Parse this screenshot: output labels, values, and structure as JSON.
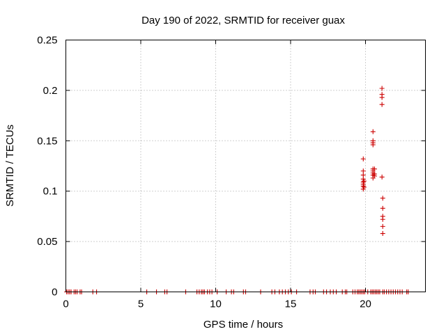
{
  "chart_data": {
    "type": "scatter",
    "title": "Day 190 of 2022, SRMTID for receiver guax",
    "xlabel": "GPS time / hours",
    "ylabel": "SRMTID / TECUs",
    "xlim": [
      0,
      24
    ],
    "ylim": [
      0,
      0.25
    ],
    "xticks": [
      "0",
      "5",
      "10",
      "15",
      "20"
    ],
    "yticks": [
      "0",
      "0.05",
      "0.1",
      "0.15",
      "0.2",
      "0.25"
    ],
    "xtick_values": [
      0,
      5,
      10,
      15,
      20
    ],
    "ytick_values": [
      0,
      0.05,
      0.1,
      0.15,
      0.2,
      0.25
    ],
    "grid": true,
    "marker": "plus",
    "color": "#cc0000",
    "points": [
      [
        0.05,
        0
      ],
      [
        0.15,
        0
      ],
      [
        0.25,
        0
      ],
      [
        0.35,
        0
      ],
      [
        0.55,
        0
      ],
      [
        0.65,
        0
      ],
      [
        0.75,
        0
      ],
      [
        0.95,
        0
      ],
      [
        1.05,
        0
      ],
      [
        1.8,
        0
      ],
      [
        2.05,
        0
      ],
      [
        5.4,
        0
      ],
      [
        6.05,
        0
      ],
      [
        6.6,
        0
      ],
      [
        6.75,
        0
      ],
      [
        8.0,
        0
      ],
      [
        8.75,
        0
      ],
      [
        8.9,
        0
      ],
      [
        9.05,
        0
      ],
      [
        9.15,
        0
      ],
      [
        9.25,
        0
      ],
      [
        9.45,
        0
      ],
      [
        9.6,
        0
      ],
      [
        9.75,
        0
      ],
      [
        10.1,
        0
      ],
      [
        10.7,
        0
      ],
      [
        11.05,
        0
      ],
      [
        11.2,
        0
      ],
      [
        11.85,
        0
      ],
      [
        12.0,
        0
      ],
      [
        13.0,
        0
      ],
      [
        13.75,
        0
      ],
      [
        13.95,
        0
      ],
      [
        14.25,
        0
      ],
      [
        14.45,
        0
      ],
      [
        14.65,
        0
      ],
      [
        14.85,
        0
      ],
      [
        15.05,
        0
      ],
      [
        15.4,
        0
      ],
      [
        16.3,
        0
      ],
      [
        16.5,
        0
      ],
      [
        16.65,
        0
      ],
      [
        17.2,
        0
      ],
      [
        17.4,
        0
      ],
      [
        17.65,
        0
      ],
      [
        17.85,
        0
      ],
      [
        18.05,
        0
      ],
      [
        18.45,
        0
      ],
      [
        18.65,
        0
      ],
      [
        18.75,
        0
      ],
      [
        19.15,
        0
      ],
      [
        19.3,
        0
      ],
      [
        19.45,
        0
      ],
      [
        19.55,
        0
      ],
      [
        19.65,
        0
      ],
      [
        19.75,
        0
      ],
      [
        19.85,
        0
      ],
      [
        19.95,
        0
      ],
      [
        20.15,
        0
      ],
      [
        20.35,
        0
      ],
      [
        20.45,
        0
      ],
      [
        20.55,
        0
      ],
      [
        20.65,
        0
      ],
      [
        20.75,
        0
      ],
      [
        20.85,
        0
      ],
      [
        20.95,
        0
      ],
      [
        21.15,
        0
      ],
      [
        21.25,
        0
      ],
      [
        21.4,
        0
      ],
      [
        21.55,
        0
      ],
      [
        21.7,
        0
      ],
      [
        21.85,
        0
      ],
      [
        22.0,
        0
      ],
      [
        22.15,
        0
      ],
      [
        22.3,
        0
      ],
      [
        22.45,
        0
      ],
      [
        22.75,
        0
      ],
      [
        22.85,
        0
      ],
      [
        19.85,
        0.132
      ],
      [
        19.85,
        0.12
      ],
      [
        19.85,
        0.116
      ],
      [
        19.85,
        0.112
      ],
      [
        19.85,
        0.109
      ],
      [
        19.85,
        0.107
      ],
      [
        19.85,
        0.105
      ],
      [
        19.85,
        0.102
      ],
      [
        19.9,
        0.11
      ],
      [
        19.9,
        0.104
      ],
      [
        20.5,
        0.159
      ],
      [
        20.5,
        0.15
      ],
      [
        20.5,
        0.148
      ],
      [
        20.5,
        0.146
      ],
      [
        20.5,
        0.122
      ],
      [
        20.5,
        0.12
      ],
      [
        20.5,
        0.118
      ],
      [
        20.5,
        0.116
      ],
      [
        20.5,
        0.113
      ],
      [
        20.6,
        0.122
      ],
      [
        20.6,
        0.117
      ],
      [
        20.6,
        0.115
      ],
      [
        21.1,
        0.202
      ],
      [
        21.1,
        0.196
      ],
      [
        21.1,
        0.193
      ],
      [
        21.1,
        0.186
      ],
      [
        21.1,
        0.114
      ],
      [
        21.15,
        0.093
      ],
      [
        21.15,
        0.083
      ],
      [
        21.15,
        0.075
      ],
      [
        21.15,
        0.072
      ],
      [
        21.15,
        0.065
      ],
      [
        21.15,
        0.058
      ]
    ]
  }
}
